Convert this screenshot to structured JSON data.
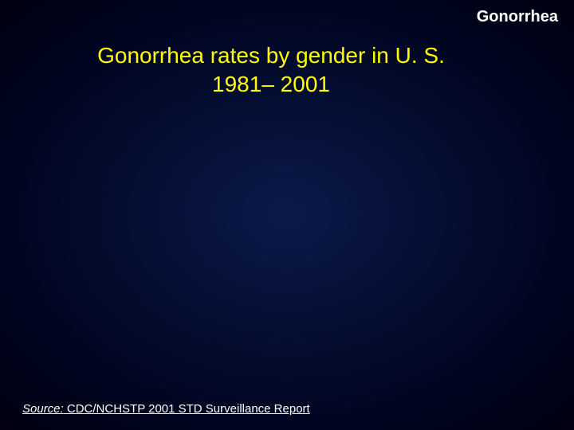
{
  "slide": {
    "header_label": "Gonorrhea",
    "title_line1": "Gonorrhea rates by gender in U. S.",
    "title_line2": "1981– 2001",
    "source_label": "Source:",
    "source_text": " CDC/NCHSTP 2001 STD Surveillance Report",
    "colors": {
      "background_center": "#0b1a4a",
      "background_edge": "#000010",
      "title_color": "#ffff00",
      "text_color": "#ffffff"
    },
    "typography": {
      "header_fontsize": 20,
      "title_fontsize": 28,
      "source_fontsize": 15,
      "font_family": "Arial"
    }
  }
}
